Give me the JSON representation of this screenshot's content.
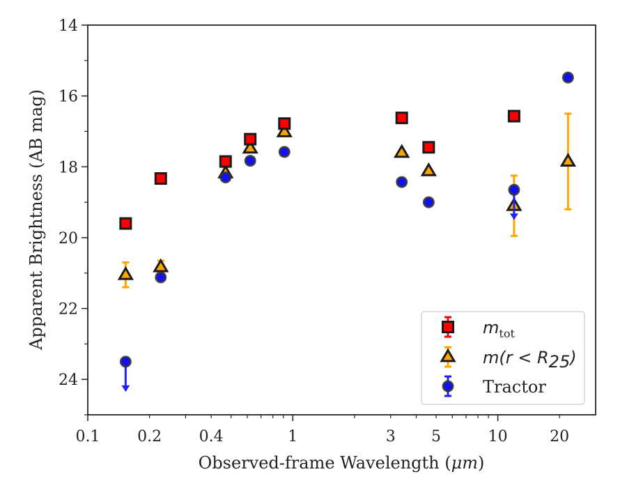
{
  "chart_data": {
    "type": "scatter",
    "xlabel_prefix": "Observed-frame Wavelength (",
    "xlabel_unit": "μm",
    "xlabel_suffix": ")",
    "ylabel": "Apparent Brightness (AB mag)",
    "x_scale": "log",
    "xlim": [
      0.1,
      30
    ],
    "ylim": [
      25,
      14
    ],
    "y_inverted": true,
    "x_ticks": [
      {
        "value": 0.1,
        "label": "0.1"
      },
      {
        "value": 0.2,
        "label": "0.2"
      },
      {
        "value": 0.4,
        "label": "0.4"
      },
      {
        "value": 1,
        "label": "1"
      },
      {
        "value": 3,
        "label": "3"
      },
      {
        "value": 5,
        "label": "5"
      },
      {
        "value": 10,
        "label": "10"
      },
      {
        "value": 20,
        "label": "20"
      }
    ],
    "y_ticks": [
      14,
      16,
      18,
      20,
      22,
      24
    ],
    "grid": false,
    "legend_position": "lower-right",
    "series": [
      {
        "name": "m_tot",
        "legend_main": "m",
        "legend_sub": "tot",
        "marker": "square",
        "fill": "#ff0000",
        "edge": "#1a1a1a",
        "errcolor": "#ff0000",
        "points": [
          {
            "x": 0.153,
            "y": 19.6,
            "err": 0.05
          },
          {
            "x": 0.227,
            "y": 18.33,
            "err": 0.05
          },
          {
            "x": 0.47,
            "y": 17.85,
            "err": 0.05
          },
          {
            "x": 0.62,
            "y": 17.22,
            "err": 0.05
          },
          {
            "x": 0.91,
            "y": 16.78,
            "err": 0.05
          },
          {
            "x": 3.4,
            "y": 16.62,
            "err": 0.05
          },
          {
            "x": 4.6,
            "y": 17.45,
            "err": 0.05
          },
          {
            "x": 12.0,
            "y": 16.57,
            "err": 0.05
          }
        ]
      },
      {
        "name": "m(r<R25)",
        "legend_main": "m",
        "legend_open": "(r < R",
        "legend_sub": "25",
        "legend_close": ")",
        "marker": "triangle",
        "fill": "#ffa500",
        "edge": "#1a1a1a",
        "errcolor": "#ffa500",
        "points": [
          {
            "x": 0.153,
            "y": 21.05,
            "err": 0.35
          },
          {
            "x": 0.227,
            "y": 20.83,
            "err": 0.18
          },
          {
            "x": 0.47,
            "y": 18.18,
            "err": 0.05
          },
          {
            "x": 0.62,
            "y": 17.48,
            "err": 0.05
          },
          {
            "x": 0.91,
            "y": 17.02,
            "err": 0.05
          },
          {
            "x": 3.4,
            "y": 17.6,
            "err": 0.05
          },
          {
            "x": 4.6,
            "y": 18.12,
            "err": 0.05
          },
          {
            "x": 12.0,
            "y": 19.1,
            "err": 0.85
          },
          {
            "x": 22.0,
            "y": 17.85,
            "err": 1.35
          }
        ]
      },
      {
        "name": "Tractor",
        "legend_main": "Tractor",
        "marker": "circle",
        "fill": "#1010ff",
        "edge": "#333333",
        "errcolor": "#2020ff",
        "points": [
          {
            "x": 0.153,
            "y": 23.5,
            "upper_limit": true
          },
          {
            "x": 0.227,
            "y": 21.12,
            "err": 0.05
          },
          {
            "x": 0.47,
            "y": 18.3,
            "err": 0.05
          },
          {
            "x": 0.62,
            "y": 17.83,
            "err": 0.05
          },
          {
            "x": 0.91,
            "y": 17.58,
            "err": 0.05
          },
          {
            "x": 3.4,
            "y": 18.43,
            "err": 0.05
          },
          {
            "x": 4.6,
            "y": 19.0,
            "err": 0.05
          },
          {
            "x": 12.0,
            "y": 18.65,
            "upper_limit": true
          },
          {
            "x": 22.0,
            "y": 15.48,
            "err": 0.05
          }
        ]
      }
    ]
  }
}
